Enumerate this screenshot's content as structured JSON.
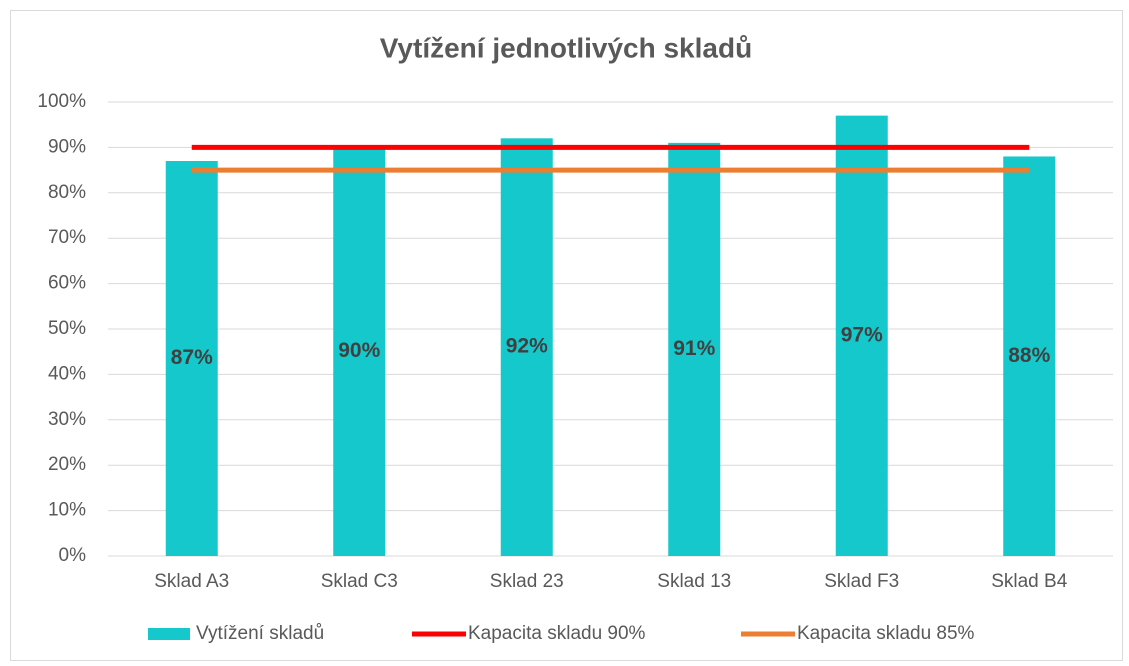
{
  "chart_data": {
    "type": "bar",
    "title": "Vytížení jednotlivých skladů",
    "categories": [
      "Sklad A3",
      "Sklad C3",
      "Sklad 23",
      "Sklad 13",
      "Sklad F3",
      "Sklad B4"
    ],
    "series": [
      {
        "name": "Vytížení skladů",
        "type": "bar",
        "color": "#14c8cc",
        "values": [
          87,
          90,
          92,
          91,
          97,
          88
        ],
        "value_labels": [
          "87%",
          "90%",
          "92%",
          "91%",
          "97%",
          "88%"
        ]
      },
      {
        "name": "Kapacita skladu 90%",
        "type": "line",
        "color": "#ff0000",
        "values": [
          90,
          90,
          90,
          90,
          90,
          90
        ]
      },
      {
        "name": "Kapacita skladu 85%",
        "type": "line",
        "color": "#ed7d31",
        "values": [
          85,
          85,
          85,
          85,
          85,
          85
        ]
      }
    ],
    "ylim": [
      0,
      100
    ],
    "yticks": [
      {
        "value": 0,
        "label": "0%"
      },
      {
        "value": 10,
        "label": "10%"
      },
      {
        "value": 20,
        "label": "20%"
      },
      {
        "value": 30,
        "label": "30%"
      },
      {
        "value": 40,
        "label": "40%"
      },
      {
        "value": 50,
        "label": "50%"
      },
      {
        "value": 60,
        "label": "60%"
      },
      {
        "value": 70,
        "label": "70%"
      },
      {
        "value": 80,
        "label": "80%"
      },
      {
        "value": 90,
        "label": "90%"
      },
      {
        "value": 100,
        "label": "100%"
      }
    ],
    "grid": true,
    "legend": "bottom"
  }
}
